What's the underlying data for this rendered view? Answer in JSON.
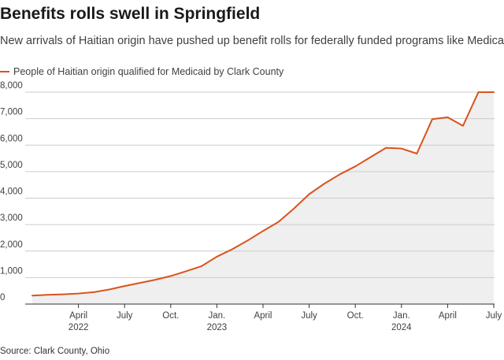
{
  "title": "Benefits rolls swell in Springfield",
  "subtitle": "New arrivals of Haitian origin have pushed up benefit rolls for federally funded programs like Medicaid.",
  "legend_label": "People of Haitian origin qualified for Medicaid by Clark County",
  "source": "Source: Clark County, Ohio",
  "colors": {
    "line": "#d9531e",
    "area": "#efefef",
    "grid": "#cccccc",
    "axis": "#333333"
  },
  "chart_data": {
    "type": "area",
    "series": [
      {
        "name": "People of Haitian origin qualified for Medicaid by Clark County",
        "x": [
          "2022-01",
          "2022-02",
          "2022-03",
          "2022-04",
          "2022-05",
          "2022-06",
          "2022-07",
          "2022-08",
          "2022-09",
          "2022-10",
          "2022-11",
          "2022-12",
          "2023-01",
          "2023-02",
          "2023-03",
          "2023-04",
          "2023-05",
          "2023-06",
          "2023-07",
          "2023-08",
          "2023-09",
          "2023-10",
          "2023-11",
          "2023-12",
          "2024-01",
          "2024-02",
          "2024-03",
          "2024-04",
          "2024-05",
          "2024-06",
          "2024-07"
        ],
        "values": [
          320,
          350,
          370,
          400,
          450,
          550,
          680,
          800,
          920,
          1060,
          1240,
          1430,
          1790,
          2070,
          2400,
          2760,
          3100,
          3600,
          4150,
          4550,
          4900,
          5200,
          5550,
          5900,
          5870,
          5680,
          6980,
          7050,
          6730,
          8000,
          8000
        ]
      }
    ],
    "x_ticks": [
      {
        "x": "2022-04",
        "label": "April",
        "sub": "2022"
      },
      {
        "x": "2022-07",
        "label": "July",
        "sub": ""
      },
      {
        "x": "2022-10",
        "label": "Oct.",
        "sub": ""
      },
      {
        "x": "2023-01",
        "label": "Jan.",
        "sub": "2023"
      },
      {
        "x": "2023-04",
        "label": "April",
        "sub": ""
      },
      {
        "x": "2023-07",
        "label": "July",
        "sub": ""
      },
      {
        "x": "2023-10",
        "label": "Oct.",
        "sub": ""
      },
      {
        "x": "2024-01",
        "label": "Jan.",
        "sub": "2024"
      },
      {
        "x": "2024-04",
        "label": "April",
        "sub": ""
      },
      {
        "x": "2024-07",
        "label": "July",
        "sub": ""
      }
    ],
    "y_ticks": [
      0,
      1000,
      2000,
      3000,
      4000,
      5000,
      6000,
      7000,
      8000
    ],
    "y_tick_labels": [
      "0",
      "1,000",
      "2,000",
      "3,000",
      "4,000",
      "5,000",
      "6,000",
      "7,000",
      "8,000"
    ],
    "ylim": [
      0,
      8000
    ],
    "grid": true,
    "legend_position": "top-left"
  }
}
